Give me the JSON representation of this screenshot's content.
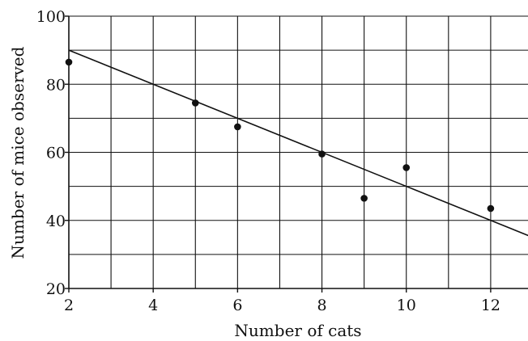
{
  "chart_data": {
    "type": "scatter",
    "title": "",
    "xlabel": "Number of cats",
    "ylabel": "Number of mice observed",
    "xlim": [
      2,
      13
    ],
    "ylim": [
      20,
      100
    ],
    "x_tick_labels": [
      "2",
      "4",
      "6",
      "8",
      "10",
      "12"
    ],
    "y_tick_labels": [
      "20",
      "40",
      "60",
      "80",
      "100"
    ],
    "x_gridlines": [
      2,
      3,
      4,
      5,
      6,
      7,
      8,
      9,
      10,
      11,
      12,
      13
    ],
    "y_gridlines": [
      20,
      30,
      40,
      50,
      60,
      70,
      80,
      90,
      100
    ],
    "grid": true,
    "legend": "none",
    "points": [
      {
        "x": 2,
        "y": 86.5
      },
      {
        "x": 5,
        "y": 74.5
      },
      {
        "x": 6,
        "y": 67.5
      },
      {
        "x": 8,
        "y": 59.5
      },
      {
        "x": 9,
        "y": 46.5
      },
      {
        "x": 10,
        "y": 55.5
      },
      {
        "x": 12,
        "y": 43.5
      }
    ],
    "trend_line": {
      "x": [
        2,
        13
      ],
      "y": [
        90,
        35
      ]
    },
    "colors": {
      "points": "#111111",
      "line": "#111111",
      "grid": "#111111",
      "background": "#ffffff"
    }
  }
}
